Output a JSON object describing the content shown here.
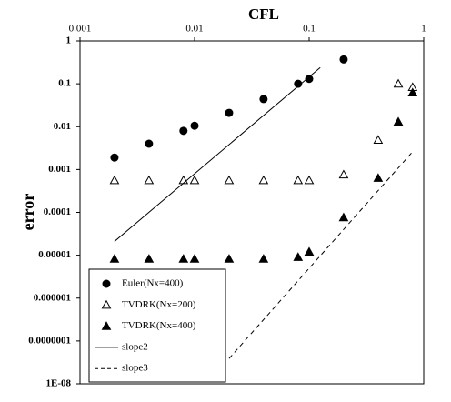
{
  "chart_data": {
    "type": "scatter",
    "xlabel": "CFL",
    "ylabel": "error",
    "xlog": true,
    "ylog": true,
    "grid": false,
    "xlim": [
      0.001,
      1
    ],
    "xticks": [
      0.001,
      0.01,
      0.1,
      1
    ],
    "ylim": [
      1e-08,
      1
    ],
    "yticks": [
      1,
      0.1,
      0.01,
      0.001,
      0.0001,
      1e-05,
      1e-06,
      {
        "value": 1e-07,
        "label": "0.0000001"
      },
      {
        "value": 1e-08,
        "label": "1E-08"
      }
    ],
    "legend_position": "lower left",
    "series": [
      {
        "name": "Euler(Nx=400)",
        "color": "#000000",
        "marker": "circle",
        "line": "none",
        "x": [
          0.002,
          0.004,
          0.008,
          0.01,
          0.02,
          0.04,
          0.08,
          0.1,
          0.2
        ],
        "values": [
          0.0019,
          0.004,
          0.008,
          0.0105,
          0.021,
          0.044,
          0.1,
          0.13,
          0.37
        ]
      },
      {
        "name": "TVDRK(Nx=200)",
        "color": "#000000",
        "marker": "triangle-open",
        "line": "none",
        "x": [
          0.002,
          0.004,
          0.008,
          0.01,
          0.02,
          0.04,
          0.08,
          0.1,
          0.2,
          0.4,
          0.6,
          0.8
        ],
        "values": [
          0.00056,
          0.00056,
          0.00056,
          0.00056,
          0.00056,
          0.00056,
          0.00056,
          0.00056,
          0.00076,
          0.0049,
          0.1,
          0.083
        ]
      },
      {
        "name": "TVDRK(Nx=400)",
        "color": "#000000",
        "marker": "triangle",
        "line": "none",
        "x": [
          0.002,
          0.004,
          0.008,
          0.01,
          0.02,
          0.04,
          0.08,
          0.1,
          0.2,
          0.4,
          0.6,
          0.8
        ],
        "values": [
          8.2e-06,
          8.2e-06,
          8.2e-06,
          8.2e-06,
          8.2e-06,
          8.2e-06,
          9e-06,
          1.2e-05,
          7.6e-05,
          0.00063,
          0.013,
          0.062
        ]
      },
      {
        "name": "slope2",
        "color": "#000000",
        "marker": "none",
        "line": "solid",
        "x": [
          0.002,
          0.125
        ],
        "values": [
          2.1e-05,
          0.24
        ]
      },
      {
        "name": "slope3",
        "color": "#000000",
        "marker": "none",
        "line": "dashed",
        "x": [
          0.02,
          0.8
        ],
        "values": [
          3.9e-08,
          0.0026
        ]
      }
    ]
  }
}
